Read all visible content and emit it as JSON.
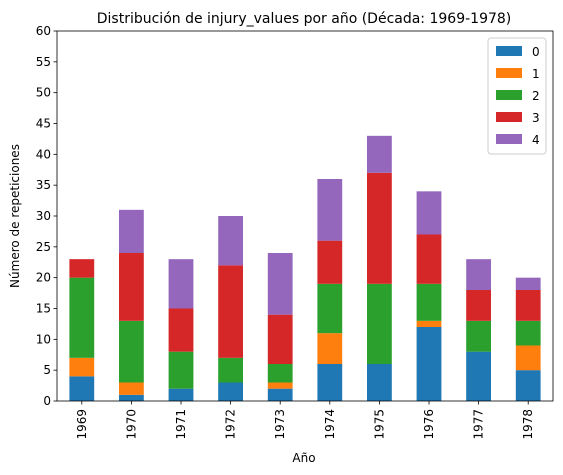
{
  "chart_data": {
    "type": "bar",
    "stacked": true,
    "title": "Distribución de injury_values por año (Década: 1969-1978)",
    "xlabel": "Año",
    "ylabel": "Número de repeticiones",
    "ylim": [
      0,
      60
    ],
    "yticks": [
      0,
      5,
      10,
      15,
      20,
      25,
      30,
      35,
      40,
      45,
      50,
      55,
      60
    ],
    "categories": [
      "1969",
      "1970",
      "1971",
      "1972",
      "1973",
      "1974",
      "1975",
      "1976",
      "1977",
      "1978"
    ],
    "grid": false,
    "legend_position": "top-right",
    "series": [
      {
        "name": "0",
        "color": "#1f77b4",
        "values": [
          4,
          1,
          2,
          3,
          2,
          6,
          6,
          12,
          8,
          5
        ]
      },
      {
        "name": "1",
        "color": "#ff7f0e",
        "values": [
          3,
          2,
          0,
          0,
          1,
          5,
          0,
          1,
          0,
          4
        ]
      },
      {
        "name": "2",
        "color": "#2ca02c",
        "values": [
          13,
          10,
          6,
          4,
          3,
          8,
          13,
          6,
          5,
          4
        ]
      },
      {
        "name": "3",
        "color": "#d62728",
        "values": [
          3,
          11,
          7,
          15,
          8,
          7,
          18,
          8,
          5,
          5
        ]
      },
      {
        "name": "4",
        "color": "#9467bd",
        "values": [
          0,
          7,
          8,
          8,
          10,
          10,
          6,
          7,
          5,
          2
        ]
      }
    ]
  }
}
